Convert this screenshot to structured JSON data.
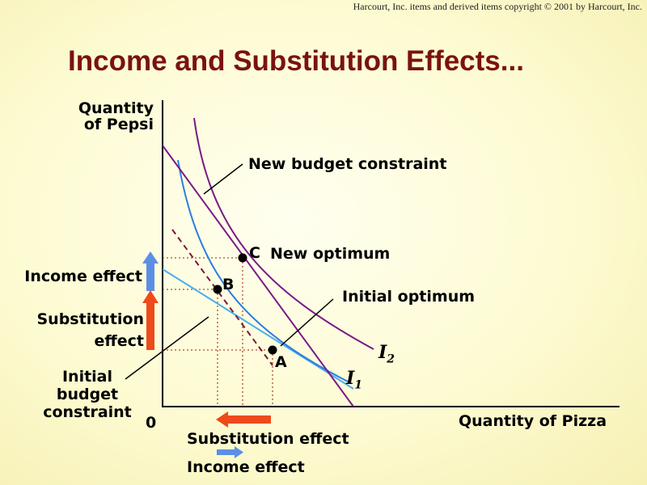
{
  "copyright": "Harcourt, Inc. items and derived items copyright © 2001 by Harcourt, Inc.",
  "title": "Income and Substitution Effects...",
  "axes": {
    "y_label_line1": "Quantity",
    "y_label_line2": "of Pepsi",
    "x_label": "Quantity of Pizza",
    "origin": "0"
  },
  "labels": {
    "new_budget_constraint": "New budget constraint",
    "new_optimum": "New optimum",
    "initial_optimum": "Initial optimum",
    "initial_budget_line1": "Initial",
    "initial_budget_line2": "budget",
    "initial_budget_line3": "constraint",
    "point_a": "A",
    "point_b": "B",
    "point_c": "C",
    "curve_i1_letter": "I",
    "curve_i1_sub": "1",
    "curve_i2_letter": "I",
    "curve_i2_sub": "2"
  },
  "effects_vertical": {
    "income": "Income effect",
    "substitution_line1": "Substitution",
    "substitution_line2": "effect"
  },
  "effects_horizontal": {
    "substitution": "Substitution effect",
    "income": "Income effect"
  },
  "colors": {
    "title": "#7a1212",
    "budget_new": "#7a1a8a",
    "indifference_i2": "#7a1a8a",
    "indifference_i1": "#2a7de0",
    "budget_initial": "#4aaef0",
    "hypothetical_budget": "#7a1a3a",
    "guides": "#b84a2a",
    "income_arrow": "#5b8fe6",
    "substitution_arrow": "#ee4a1a"
  }
}
